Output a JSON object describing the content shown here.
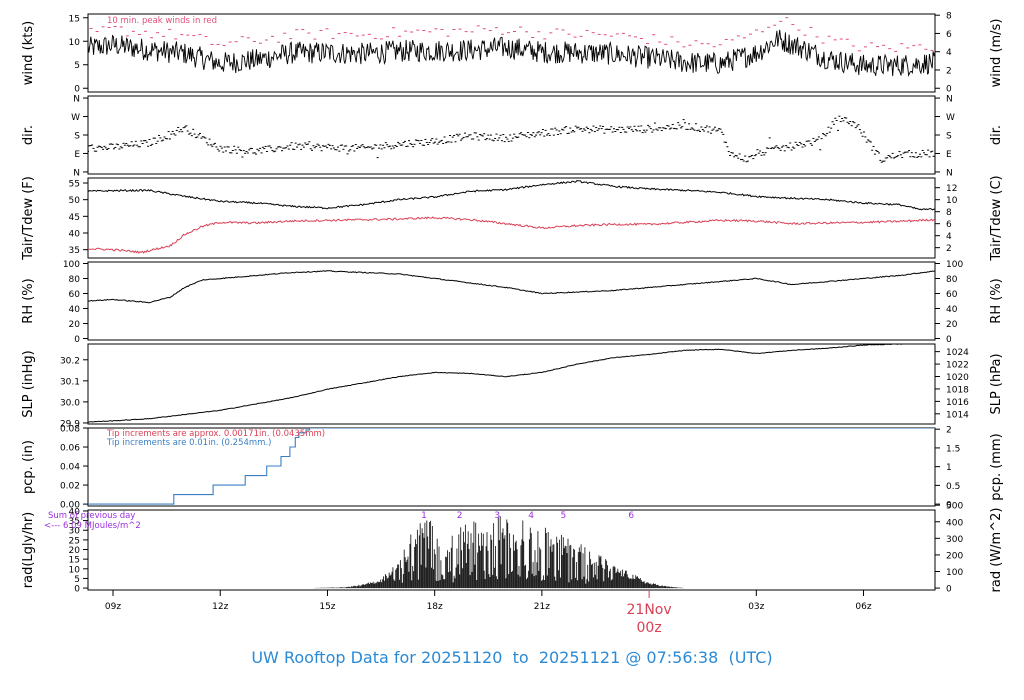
{
  "caption": "UW Rooftop Data for 20251120  to  20251121 @ 07:56:38  (UTC)",
  "colors": {
    "frame": "#000000",
    "peak": "#e0507a",
    "dewpoint": "#d94055",
    "pcp_metric": "#3a7fc4",
    "pcp_english": "#d94055",
    "rad_note": "#9b30e0",
    "date_label": "#d94055",
    "caption": "#2a8ad6"
  },
  "chart_data": {
    "type": "line",
    "x_axis": {
      "unit": "hour UTC, from 20251120 00z",
      "range": [
        8.3,
        32.0
      ],
      "ticks": [
        {
          "hour": 9,
          "label": "09z"
        },
        {
          "hour": 12,
          "label": "12z"
        },
        {
          "hour": 15,
          "label": "15z"
        },
        {
          "hour": 18,
          "label": "18z"
        },
        {
          "hour": 21,
          "label": "21z"
        },
        {
          "hour": 27,
          "label": "03z"
        },
        {
          "hour": 30,
          "label": "06z"
        }
      ],
      "date_marker": {
        "hour": 24,
        "day": "21Nov",
        "time": "00z"
      }
    },
    "panels": [
      {
        "id": "wind",
        "ylabel_left": "wind (kts)",
        "ylabel_right": "wind (m/s)",
        "ylim": [
          -0.8,
          15.8
        ],
        "left_ticks": [
          0,
          5,
          10,
          15
        ],
        "right_ticks": [
          0,
          2,
          4,
          6,
          8
        ],
        "right_to_left_factor": 1.94384,
        "note": "10 min. peak winds in red",
        "series": [
          {
            "role": "speed",
            "x": [
              8.3,
              9,
              10,
              11,
              12,
              13,
              14,
              15,
              16,
              17,
              18,
              19,
              20,
              21,
              22,
              23,
              24,
              25,
              26,
              27,
              27.6,
              28.3,
              29,
              30,
              31,
              32
            ],
            "y": [
              8.5,
              9.2,
              8.2,
              7.4,
              5.3,
              6.0,
              7.5,
              7.6,
              7.3,
              7.9,
              8.0,
              8.1,
              8.7,
              7.7,
              7.6,
              7.3,
              6.5,
              5.5,
              5.2,
              7.5,
              10.5,
              8.5,
              6.3,
              4.8,
              4.9,
              5.5
            ]
          },
          {
            "role": "peak",
            "x": [
              8.3,
              9,
              10,
              11,
              12,
              13,
              14,
              15,
              16,
              17,
              18,
              19,
              20,
              21,
              22,
              23,
              24,
              25,
              26,
              27,
              27.6,
              28.3,
              29,
              30,
              31,
              32
            ],
            "y": [
              11.5,
              12.5,
              11.8,
              11.2,
              9.3,
              10.2,
              11.3,
              11.6,
              11.4,
              11.8,
              12.1,
              12.2,
              12.6,
              11.7,
              11.5,
              11.3,
              10.5,
              9.5,
              9.2,
              11.7,
              14.8,
              12.7,
              10.3,
              8.7,
              8.6,
              9.0
            ]
          }
        ]
      },
      {
        "id": "direction",
        "ylabel_left": "dir.",
        "ylabel_right": "dir.",
        "ylim": [
          -10,
          370
        ],
        "left_ticks": [
          {
            "v": 0,
            "label": "N"
          },
          {
            "v": 90,
            "label": "E"
          },
          {
            "v": 180,
            "label": "S"
          },
          {
            "v": 270,
            "label": "W"
          },
          {
            "v": 360,
            "label": "N"
          }
        ],
        "right_ticks": [
          {
            "v": 0,
            "label": "N"
          },
          {
            "v": 90,
            "label": "E"
          },
          {
            "v": 180,
            "label": "S"
          },
          {
            "v": 270,
            "label": "W"
          },
          {
            "v": 360,
            "label": "N"
          }
        ],
        "series": [
          {
            "role": "direction_deg",
            "x": [
              8.3,
              9,
              10,
              11,
              12,
              13,
              14,
              15,
              16,
              17,
              18,
              19,
              20,
              21,
              22,
              23,
              24,
              25,
              26,
              26.3,
              26.8,
              27,
              28,
              28.8,
              29.3,
              29.8,
              30.5,
              31,
              32
            ],
            "y": [
              115,
              120,
              140,
              215,
              115,
              100,
              125,
              120,
              115,
              135,
              150,
              175,
              165,
              190,
              210,
              205,
              210,
              225,
              200,
              85,
              60,
              90,
              125,
              155,
              265,
              230,
              60,
              85,
              90
            ]
          }
        ]
      },
      {
        "id": "temperature",
        "ylabel_left": "Tair/Tdew (F)",
        "ylabel_right": "Tair/Tdew (C)",
        "ylim": [
          32.5,
          56.5
        ],
        "left_ticks": [
          35,
          40,
          45,
          50,
          55
        ],
        "right_ticks": [
          2,
          4,
          6,
          8,
          10,
          12
        ],
        "series": [
          {
            "role": "air",
            "x": [
              8.3,
              9,
              10,
              11,
              12,
              13,
              14,
              15,
              16,
              17,
              18,
              19,
              20,
              21,
              22,
              23,
              24,
              25,
              26,
              27,
              28,
              29,
              30,
              31,
              31.6,
              32
            ],
            "y": [
              52.5,
              52.7,
              52.8,
              51.0,
              49.5,
              49.0,
              48.0,
              47.5,
              48.5,
              50.0,
              50.8,
              52.5,
              53.0,
              54.5,
              55.5,
              54.0,
              53.2,
              52.8,
              52.2,
              51.0,
              50.4,
              50.0,
              49.0,
              48.5,
              47.0,
              47.2
            ]
          },
          {
            "role": "dewpoint",
            "x": [
              8.3,
              9,
              9.8,
              10.6,
              11,
              11.5,
              12,
              13,
              14,
              15,
              16,
              17,
              18,
              19,
              20,
              21,
              22,
              23,
              24,
              25,
              26,
              27,
              28,
              29,
              30,
              31,
              32
            ],
            "y": [
              35.3,
              35.0,
              34.2,
              36.2,
              39.5,
              42.0,
              43.2,
              43.0,
              43.6,
              43.8,
              44.0,
              44.2,
              44.6,
              44.0,
              42.8,
              41.5,
              42.2,
              42.6,
              42.6,
              43.2,
              43.8,
              43.6,
              42.8,
              43.0,
              43.2,
              43.5,
              44.0
            ]
          }
        ]
      },
      {
        "id": "humidity",
        "ylabel_left": "RH (%)",
        "ylabel_right": "RH (%)",
        "ylim": [
          -2,
          102
        ],
        "left_ticks": [
          0,
          20,
          40,
          60,
          80,
          100
        ],
        "right_ticks": [
          0,
          20,
          40,
          60,
          80,
          100
        ],
        "series": [
          {
            "role": "rh",
            "x": [
              8.3,
              9,
              10,
              10.6,
              11,
              11.5,
              12,
              13,
              14,
              15,
              16,
              17,
              18,
              19,
              20,
              21,
              22,
              23,
              24,
              25,
              26,
              27,
              28,
              29,
              30,
              31,
              32
            ],
            "y": [
              50,
              52,
              48,
              55,
              68,
              78,
              80,
              84,
              88,
              90,
              88,
              86,
              80,
              74,
              68,
              60,
              62,
              64,
              68,
              72,
              76,
              80,
              72,
              76,
              80,
              84,
              90
            ]
          }
        ]
      },
      {
        "id": "pressure",
        "ylabel_left": "SLP (inHg)",
        "ylabel_right": "SLP (hPa)",
        "ylim": [
          29.895,
          30.275
        ],
        "left_ticks": [
          29.9,
          30.0,
          30.1,
          30.2
        ],
        "right_ticks": [
          1014,
          1016,
          1018,
          1020,
          1022,
          1024
        ],
        "right_to_left_factor": 0.02953,
        "series": [
          {
            "role": "slp",
            "x": [
              8.3,
              9,
              10,
              11,
              12,
              13,
              14,
              15,
              16,
              17,
              18,
              19,
              20,
              21,
              22,
              23,
              24,
              25,
              26,
              27,
              28,
              29,
              30,
              31,
              32
            ],
            "y": [
              29.905,
              29.91,
              29.92,
              29.94,
              29.96,
              29.99,
              30.02,
              30.06,
              30.09,
              30.12,
              30.14,
              30.135,
              30.12,
              30.14,
              30.18,
              30.21,
              30.225,
              30.245,
              30.25,
              30.23,
              30.245,
              30.255,
              30.27,
              30.275,
              30.28
            ]
          }
        ]
      },
      {
        "id": "precipitation",
        "ylabel_left": "pcp. (in)",
        "ylabel_right": "pcp. (mm)",
        "ylim": [
          -0.002,
          0.08
        ],
        "left_ticks": [
          0.0,
          0.02,
          0.04,
          0.06,
          0.08
        ],
        "right_ticks": [
          0,
          0.5,
          1,
          1.5,
          2
        ],
        "right_to_left_factor": 0.0393701,
        "note_english": "Tip increments are approx. 0.00171in. (0.0435mm)",
        "note_metric": "Tip increments are 0.01in. (0.254mm.)",
        "series": [
          {
            "role": "cumulative_in",
            "step": true,
            "x": [
              8.3,
              10.7,
              11.8,
              12.7,
              13.3,
              13.7,
              13.95,
              14.1,
              14.2,
              14.4,
              14.5,
              32.0
            ],
            "y": [
              0.0,
              0.01,
              0.02,
              0.03,
              0.04,
              0.05,
              0.06,
              0.07,
              0.075,
              0.078,
              0.08,
              0.08
            ]
          }
        ]
      },
      {
        "id": "radiation",
        "ylabel_left": "rad(Lgly/hr)",
        "ylabel_right": "rad (W/m^2)",
        "ylim": [
          -1,
          40.5
        ],
        "left_ticks": [
          0,
          5,
          10,
          15,
          20,
          25,
          30,
          35,
          40
        ],
        "right_ticks": [
          0,
          100,
          200,
          300,
          400,
          500
        ],
        "right_to_left_factor": 0.086,
        "note_line1": "Sum of previous day",
        "note_line2": "<--- 6.09 MJoules/m^2",
        "peak_labels": [
          {
            "hour": 17.7,
            "label": "1"
          },
          {
            "hour": 18.7,
            "label": "2"
          },
          {
            "hour": 19.75,
            "label": "3"
          },
          {
            "hour": 20.7,
            "label": "4"
          },
          {
            "hour": 21.6,
            "label": "5"
          },
          {
            "hour": 23.5,
            "label": "6"
          }
        ],
        "series": [
          {
            "role": "radiation",
            "x": [
              14.5,
              15.5,
              16.0,
              16.5,
              17.0,
              17.5,
              17.8,
              18.2,
              18.6,
              19.0,
              19.5,
              19.8,
              20.2,
              20.6,
              21.0,
              21.5,
              22.0,
              22.5,
              23.0,
              23.5,
              24.0,
              24.5,
              25.0
            ],
            "y": [
              0,
              0.5,
              2,
              5,
              15,
              35,
              38,
              25,
              30,
              36,
              30,
              38,
              35,
              36,
              33,
              28,
              24,
              20,
              12,
              8,
              3,
              1,
              0
            ]
          }
        ]
      }
    ]
  }
}
